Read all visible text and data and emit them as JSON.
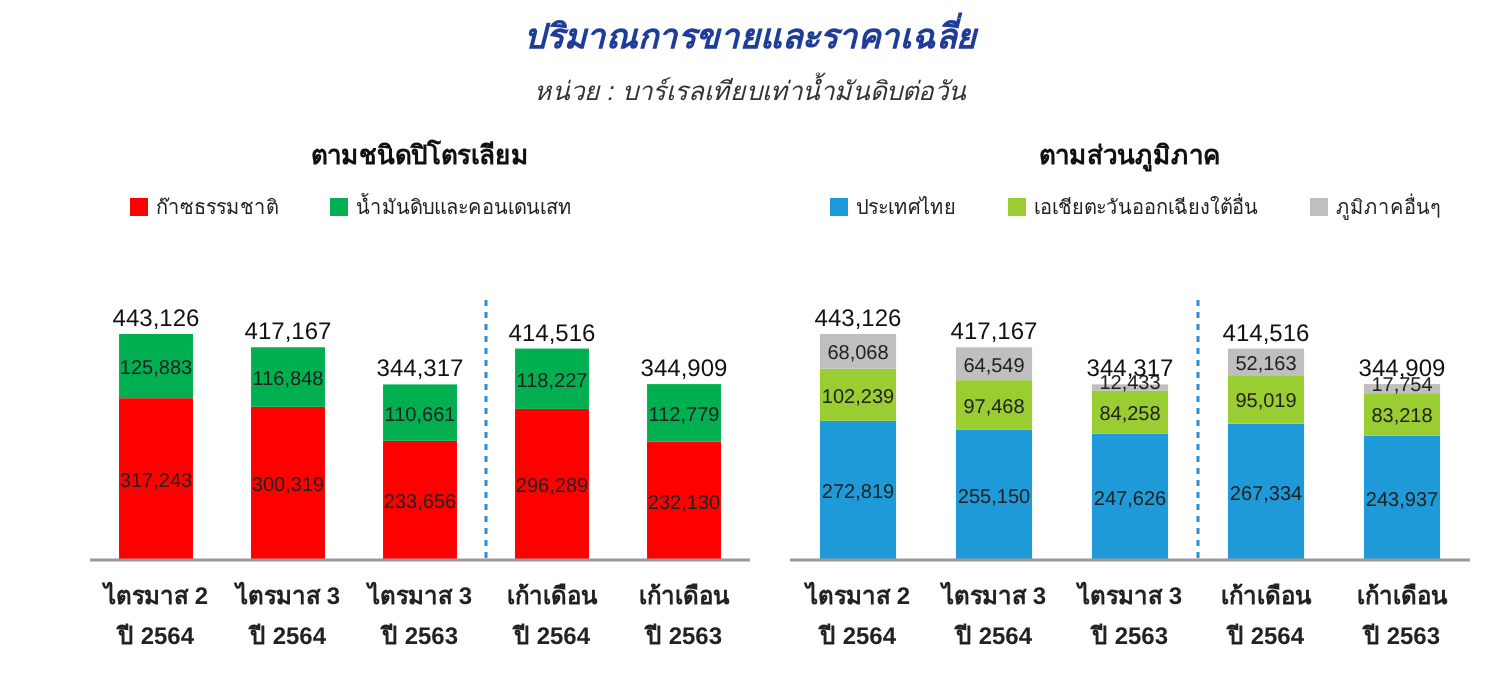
{
  "chart_data": [
    {
      "type": "bar",
      "title": "ตามชนิดปิโตรเลียม",
      "annotations": [
        "ปริมาณการขายและราคาเฉลี่ย",
        "หน่วย : บาร์เรลเทียบเท่าน้ำมันดิบต่อวัน"
      ],
      "categories": [
        "ไตรมาส 2\nปี 2564",
        "ไตรมาส 3\nปี 2564",
        "ไตรมาส 3\nปี 2563",
        "เก้าเดือน\nปี 2564",
        "เก้าเดือน\nปี 2563"
      ],
      "stacked": true,
      "legend": "top",
      "totals": [
        "443,126",
        "417,167",
        "344,317",
        "414,516",
        "344,909"
      ],
      "series": [
        {
          "name": "ก๊าซธรรมชาติ",
          "color": "#ff0000",
          "values": [
            317243,
            300319,
            233656,
            296289,
            232130
          ],
          "value_labels": [
            "317,243",
            "300,319",
            "233,656",
            "296,289",
            "232,130"
          ]
        },
        {
          "name": "น้ำมันดิบและคอนเดนเสท",
          "color": "#00b050",
          "values": [
            125883,
            116848,
            110661,
            118227,
            112779
          ],
          "value_labels": [
            "125,883",
            "116,848",
            "110,661",
            "118,227",
            "112,779"
          ]
        }
      ]
    },
    {
      "type": "bar",
      "title": "ตามส่วนภูมิภาค",
      "categories": [
        "ไตรมาส 2\nปี 2564",
        "ไตรมาส 3\nปี 2564",
        "ไตรมาส 3\nปี 2563",
        "เก้าเดือน\nปี 2564",
        "เก้าเดือน\nปี 2563"
      ],
      "stacked": true,
      "legend": "top",
      "totals": [
        "443,126",
        "417,167",
        "344,317",
        "414,516",
        "344,909"
      ],
      "series": [
        {
          "name": "ประเทศไทย",
          "color": "#1e9ad8",
          "values": [
            272819,
            255150,
            247626,
            267334,
            243937
          ],
          "value_labels": [
            "272,819",
            "255,150",
            "247,626",
            "267,334",
            "243,937"
          ]
        },
        {
          "name": "เอเชียตะวันออกเฉียงใต้อื่น",
          "color": "#9acd32",
          "values": [
            102239,
            97468,
            84258,
            95019,
            83218
          ],
          "value_labels": [
            "102,239",
            "97,468",
            "84,258",
            "95,019",
            "83,218"
          ]
        },
        {
          "name": "ภูมิภาคอื่นๆ",
          "color": "#bfbfbf",
          "values": [
            68068,
            64549,
            12433,
            52163,
            17754
          ],
          "value_labels": [
            "68,068",
            "64,549",
            "12,433",
            "52,163",
            "17,754"
          ]
        }
      ]
    }
  ]
}
